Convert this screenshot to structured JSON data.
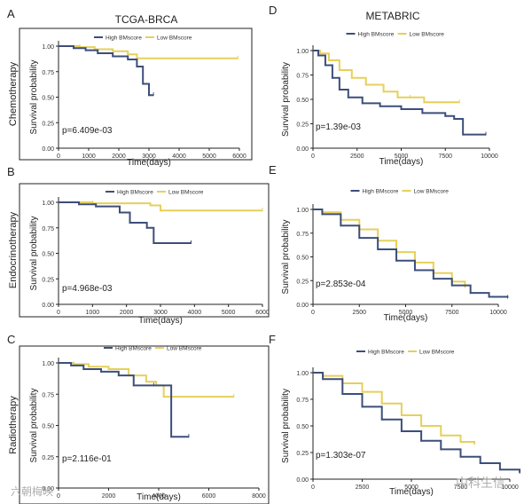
{
  "column_titles": {
    "left": "TCGA-BRCA",
    "right": "METABRIC"
  },
  "watermarks": {
    "left": "六朝梅映",
    "right": "中科生信"
  },
  "colors": {
    "high": "#3d4e7a",
    "low": "#e6d05a"
  },
  "chart_data": [
    {
      "type": "line",
      "panel": "A",
      "row_label": "Chemotherapy",
      "xlabel": "Time(days)",
      "ylabel": "Survival probability",
      "xlim": [
        0,
        6000
      ],
      "ylim": [
        0,
        1
      ],
      "xticks": [
        0,
        1000,
        2000,
        3000,
        4000,
        5000,
        6000
      ],
      "yticks": [
        "0.00",
        "0.25",
        "0.50",
        "0.75",
        "1.00"
      ],
      "pvalue": "p=6.409e-03",
      "legend": "top-center",
      "series": [
        {
          "name": "High BMscore",
          "key": "high",
          "x": [
            0,
            500,
            900,
            1300,
            1800,
            2300,
            2600,
            2800,
            3000,
            3150
          ],
          "y": [
            1.0,
            0.98,
            0.96,
            0.93,
            0.9,
            0.87,
            0.8,
            0.63,
            0.52,
            0.52
          ]
        },
        {
          "name": "Low BMscore",
          "key": "low",
          "x": [
            0,
            700,
            1200,
            1800,
            2300,
            2600,
            5950
          ],
          "y": [
            1.0,
            0.99,
            0.97,
            0.95,
            0.92,
            0.88,
            0.88
          ]
        }
      ]
    },
    {
      "type": "line",
      "panel": "B",
      "row_label": "Endocrinotherapy",
      "xlabel": "Time(days)",
      "ylabel": "Survival probability",
      "xlim": [
        0,
        6000
      ],
      "ylim": [
        0,
        1
      ],
      "xticks": [
        0,
        1000,
        2000,
        3000,
        4000,
        5000,
        6000
      ],
      "yticks": [
        "0.00",
        "0.25",
        "0.50",
        "0.75",
        "1.00"
      ],
      "pvalue": "p=4.968e-03",
      "legend": "top-center",
      "series": [
        {
          "name": "High BMscore",
          "key": "high",
          "x": [
            0,
            600,
            1100,
            1800,
            2100,
            2600,
            2800,
            3900
          ],
          "y": [
            1.0,
            0.98,
            0.96,
            0.9,
            0.8,
            0.75,
            0.6,
            0.6
          ]
        },
        {
          "name": "Low BMscore",
          "key": "low",
          "x": [
            0,
            1000,
            2700,
            3000,
            6000
          ],
          "y": [
            1.0,
            0.99,
            0.97,
            0.92,
            0.92
          ]
        }
      ]
    },
    {
      "type": "line",
      "panel": "C",
      "row_label": "Radiotherapy",
      "xlabel": "Time(days)",
      "ylabel": "Survival probability",
      "xlim": [
        0,
        8000
      ],
      "ylim": [
        0,
        1
      ],
      "xticks": [
        0,
        2000,
        4000,
        6000,
        8000
      ],
      "yticks": [
        "0.00",
        "0.25",
        "0.50",
        "0.75",
        "1.00"
      ],
      "pvalue": "p=2.116e-01",
      "legend": "top-center",
      "series": [
        {
          "name": "High BMscore",
          "key": "high",
          "x": [
            0,
            500,
            1000,
            1700,
            2400,
            3000,
            3800,
            4500,
            5200
          ],
          "y": [
            1.0,
            0.98,
            0.95,
            0.93,
            0.9,
            0.82,
            0.82,
            0.41,
            0.41
          ]
        },
        {
          "name": "Low BMscore",
          "key": "low",
          "x": [
            0,
            600,
            1200,
            2000,
            2800,
            3500,
            3900,
            4200,
            7000
          ],
          "y": [
            1.0,
            0.99,
            0.97,
            0.95,
            0.9,
            0.85,
            0.82,
            0.73,
            0.73
          ]
        }
      ]
    },
    {
      "type": "line",
      "panel": "D",
      "row_label": "Chemotherapy",
      "xlabel": "Time(days)",
      "ylabel": "Survival probability",
      "xlim": [
        0,
        10000
      ],
      "ylim": [
        0,
        1
      ],
      "xticks": [
        0,
        2500,
        5000,
        7500,
        10000
      ],
      "yticks": [
        "0.00",
        "0.25",
        "0.50",
        "0.75",
        "1.00"
      ],
      "pvalue": "p=1.39e-03",
      "legend": "top-center",
      "series": [
        {
          "name": "High BMscore",
          "key": "high",
          "x": [
            0,
            300,
            700,
            1100,
            1500,
            2000,
            2800,
            3800,
            5000,
            6200,
            7500,
            8000,
            8500,
            9800
          ],
          "y": [
            1.0,
            0.95,
            0.85,
            0.72,
            0.6,
            0.52,
            0.46,
            0.43,
            0.4,
            0.36,
            0.33,
            0.3,
            0.14,
            0.14
          ]
        },
        {
          "name": "Low BMscore",
          "key": "low",
          "x": [
            0,
            400,
            900,
            1500,
            2200,
            3000,
            4000,
            4800,
            5500,
            6300,
            8300
          ],
          "y": [
            1.0,
            0.97,
            0.9,
            0.8,
            0.72,
            0.65,
            0.58,
            0.52,
            0.52,
            0.47,
            0.47
          ]
        }
      ]
    },
    {
      "type": "line",
      "panel": "E",
      "row_label": "Endocrinotherapy",
      "xlabel": "Time(days)",
      "ylabel": "Survival probability",
      "xlim": [
        0,
        10000
      ],
      "ylim": [
        0,
        1
      ],
      "xticks": [
        0,
        2500,
        5000,
        7500,
        10000
      ],
      "yticks": [
        "0.00",
        "0.25",
        "0.50",
        "0.75",
        "1.00"
      ],
      "pvalue": "p=2.853e-04",
      "legend": "top-center",
      "series": [
        {
          "name": "High BMscore",
          "key": "high",
          "x": [
            0,
            500,
            1500,
            2500,
            3500,
            4500,
            5500,
            6500,
            7500,
            8500,
            9500,
            10500
          ],
          "y": [
            1.0,
            0.95,
            0.83,
            0.7,
            0.58,
            0.46,
            0.36,
            0.27,
            0.2,
            0.12,
            0.08,
            0.07
          ]
        },
        {
          "name": "Low BMscore",
          "key": "low",
          "x": [
            0,
            500,
            1500,
            2500,
            3500,
            4500,
            5500,
            6500,
            7500,
            8200
          ],
          "y": [
            1.0,
            0.97,
            0.89,
            0.79,
            0.67,
            0.55,
            0.44,
            0.33,
            0.24,
            0.18
          ]
        }
      ]
    },
    {
      "type": "line",
      "panel": "F",
      "row_label": "Radiotherapy",
      "xlabel": "Time(days)",
      "ylabel": "Survival probability",
      "xlim": [
        0,
        10000
      ],
      "ylim": [
        0,
        1
      ],
      "xticks": [
        0,
        2500,
        5000,
        7500,
        10000
      ],
      "yticks": [
        "0.00",
        "0.25",
        "0.50",
        "0.75",
        "1.00"
      ],
      "pvalue": "p=1.303e-07",
      "legend": "top-center",
      "series": [
        {
          "name": "High BMscore",
          "key": "high",
          "x": [
            0,
            500,
            1500,
            2500,
            3500,
            4500,
            5500,
            6500,
            7500,
            8500,
            9500,
            10500
          ],
          "y": [
            1.0,
            0.94,
            0.8,
            0.68,
            0.56,
            0.45,
            0.36,
            0.28,
            0.21,
            0.15,
            0.09,
            0.06
          ]
        },
        {
          "name": "Low BMscore",
          "key": "low",
          "x": [
            0,
            500,
            1500,
            2500,
            3500,
            4500,
            5500,
            6500,
            7500,
            8200
          ],
          "y": [
            1.0,
            0.97,
            0.9,
            0.82,
            0.71,
            0.6,
            0.5,
            0.41,
            0.35,
            0.33
          ]
        }
      ]
    }
  ]
}
